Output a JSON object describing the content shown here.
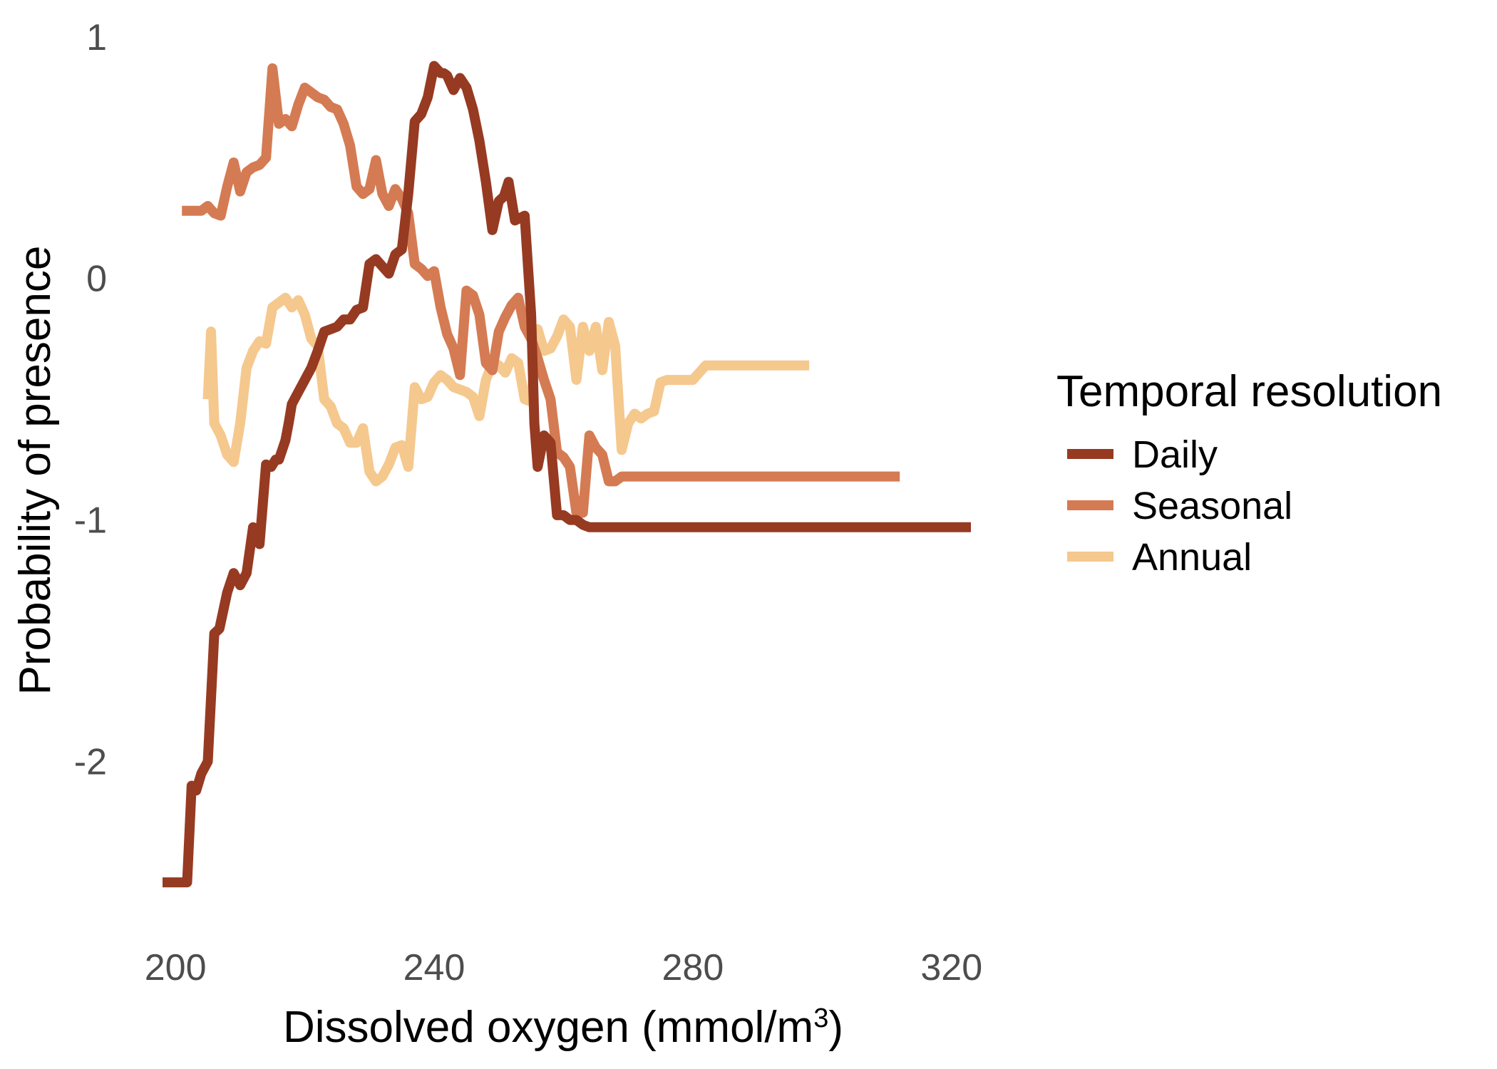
{
  "chart_data": {
    "type": "line",
    "title": "",
    "xlabel": "Dissolved oxygen (mmol/m",
    "xlabel_superscript": "3",
    "xlabel_suffix": ")",
    "ylabel": "Probability of presence",
    "xlim": [
      198,
      323
    ],
    "ylim": [
      -2.55,
      1.02
    ],
    "x_ticks": [
      200,
      240,
      280,
      320
    ],
    "x_tick_labels": [
      "200",
      "240",
      "280",
      "320"
    ],
    "y_ticks": [
      1,
      0,
      -1,
      -2
    ],
    "y_tick_labels": [
      "1",
      "0",
      "-1",
      "-2"
    ],
    "grid": false,
    "legend": {
      "title": "Temporal resolution",
      "position": "right"
    },
    "series": [
      {
        "name": "Daily",
        "color": "#973a22",
        "x": [
          198,
          201,
          201.8,
          202.5,
          203.2,
          204,
          205,
          206,
          206.8,
          208,
          209,
          210,
          211,
          212,
          213,
          214,
          214.8,
          215.5,
          216,
          217,
          217.5,
          218,
          219,
          220,
          221,
          222,
          223,
          224,
          225,
          226,
          227,
          228,
          229,
          230,
          231,
          232,
          233,
          234,
          235,
          236,
          237,
          238,
          239,
          240,
          241,
          241.5,
          242,
          243,
          244,
          245,
          246,
          247,
          248,
          249,
          250,
          250.8,
          251.5,
          252.5,
          254,
          255,
          255.5,
          256,
          257,
          258,
          259,
          260,
          261,
          262,
          263,
          264,
          265,
          266,
          266.5,
          267,
          268,
          268.5,
          269,
          270,
          271,
          272,
          273,
          274,
          274.8,
          275.5,
          276.5,
          277,
          278,
          279,
          280,
          281,
          283,
          285,
          290,
          300,
          310,
          320,
          323
        ],
        "y": [
          -2.5,
          -2.5,
          -2.5,
          -2.1,
          -2.12,
          -2.05,
          -2.0,
          -1.47,
          -1.45,
          -1.3,
          -1.22,
          -1.27,
          -1.22,
          -1.03,
          -1.1,
          -0.77,
          -0.78,
          -0.75,
          -0.75,
          -0.67,
          -0.6,
          -0.52,
          -0.47,
          -0.42,
          -0.37,
          -0.3,
          -0.22,
          -0.21,
          -0.2,
          -0.17,
          -0.17,
          -0.13,
          -0.12,
          0.06,
          0.08,
          0.05,
          0.02,
          0.1,
          0.12,
          0.35,
          0.65,
          0.68,
          0.75,
          0.88,
          0.85,
          0.85,
          0.84,
          0.78,
          0.83,
          0.79,
          0.7,
          0.57,
          0.4,
          0.2,
          0.32,
          0.34,
          0.4,
          0.24,
          0.26,
          -0.15,
          -0.6,
          -0.78,
          -0.65,
          -0.68,
          -0.98,
          -0.98,
          -1.0,
          -1.0,
          -1.02,
          -1.03,
          -1.03,
          -1.03,
          -1.03,
          -1.03,
          -1.03,
          -1.03,
          -1.03,
          -1.03,
          -1.03,
          -1.03,
          -1.03,
          -1.03,
          -1.03,
          -1.03,
          -1.03,
          -1.03,
          -1.03,
          -1.03,
          -1.03,
          -1.03,
          -1.03,
          -1.03,
          -1.03,
          -1.03,
          -1.03,
          -1.03,
          -1.03
        ]
      },
      {
        "name": "Seasonal",
        "color": "#d47b53",
        "x": [
          201,
          204,
          205,
          206,
          207,
          208,
          209,
          210,
          211,
          212,
          213,
          214,
          215,
          216,
          217,
          218,
          219,
          220,
          221,
          222,
          223,
          224,
          225,
          226,
          227,
          228,
          229,
          230,
          231,
          232,
          233,
          234,
          235,
          236,
          237,
          238,
          239,
          240,
          241,
          242,
          243,
          244,
          245,
          246,
          247,
          248,
          249,
          250,
          251,
          252,
          253,
          254,
          255,
          256,
          257,
          258,
          259,
          260,
          261,
          262,
          263,
          264,
          265,
          266,
          267,
          268,
          269,
          270,
          271,
          272,
          273,
          274,
          275,
          276,
          277,
          280,
          290,
          300,
          310,
          312
        ],
        "y": [
          0.28,
          0.28,
          0.3,
          0.27,
          0.26,
          0.38,
          0.48,
          0.36,
          0.44,
          0.46,
          0.47,
          0.5,
          0.87,
          0.64,
          0.66,
          0.63,
          0.72,
          0.79,
          0.77,
          0.75,
          0.74,
          0.71,
          0.7,
          0.64,
          0.55,
          0.38,
          0.35,
          0.37,
          0.49,
          0.35,
          0.3,
          0.37,
          0.33,
          0.27,
          0.06,
          0.04,
          0.01,
          0.03,
          -0.12,
          -0.23,
          -0.29,
          -0.4,
          -0.05,
          -0.07,
          -0.15,
          -0.35,
          -0.38,
          -0.22,
          -0.16,
          -0.11,
          -0.08,
          -0.2,
          -0.25,
          -0.33,
          -0.42,
          -0.5,
          -0.72,
          -0.74,
          -0.78,
          -0.97,
          -0.97,
          -0.65,
          -0.7,
          -0.73,
          -0.84,
          -0.84,
          -0.82,
          -0.82,
          -0.82,
          -0.82,
          -0.82,
          -0.82,
          -0.82,
          -0.82,
          -0.82,
          -0.82,
          -0.82,
          -0.82,
          -0.82,
          -0.82
        ]
      },
      {
        "name": "Annual",
        "color": "#f5c88e",
        "x": [
          205,
          205.5,
          206,
          207,
          208,
          209,
          210,
          211,
          212,
          213,
          214,
          215,
          216,
          217,
          218,
          219,
          220,
          221,
          222,
          223,
          224,
          225,
          226,
          227,
          228,
          229,
          230,
          231,
          232,
          233,
          234,
          235,
          236,
          237,
          238,
          239,
          240,
          241,
          242,
          243,
          244,
          245,
          246,
          247,
          248,
          249,
          250,
          251,
          252,
          253,
          254,
          255,
          256,
          257,
          258,
          259,
          260,
          261,
          262,
          263,
          264,
          265,
          266,
          267,
          268,
          269,
          270,
          271,
          272,
          273,
          274,
          275,
          276,
          278,
          280,
          282,
          284,
          290,
          298
        ],
        "y": [
          -0.5,
          -0.22,
          -0.6,
          -0.65,
          -0.73,
          -0.76,
          -0.6,
          -0.37,
          -0.3,
          -0.26,
          -0.27,
          -0.12,
          -0.1,
          -0.08,
          -0.12,
          -0.09,
          -0.15,
          -0.25,
          -0.28,
          -0.5,
          -0.53,
          -0.6,
          -0.62,
          -0.68,
          -0.68,
          -0.62,
          -0.8,
          -0.84,
          -0.82,
          -0.77,
          -0.7,
          -0.69,
          -0.78,
          -0.45,
          -0.5,
          -0.49,
          -0.43,
          -0.4,
          -0.42,
          -0.45,
          -0.46,
          -0.47,
          -0.49,
          -0.57,
          -0.42,
          -0.35,
          -0.36,
          -0.39,
          -0.33,
          -0.35,
          -0.5,
          -0.51,
          -0.21,
          -0.3,
          -0.29,
          -0.24,
          -0.17,
          -0.2,
          -0.42,
          -0.2,
          -0.3,
          -0.2,
          -0.38,
          -0.18,
          -0.28,
          -0.71,
          -0.6,
          -0.56,
          -0.58,
          -0.56,
          -0.55,
          -0.43,
          -0.42,
          -0.42,
          -0.42,
          -0.36,
          -0.36,
          -0.36,
          -0.36
        ]
      }
    ]
  }
}
